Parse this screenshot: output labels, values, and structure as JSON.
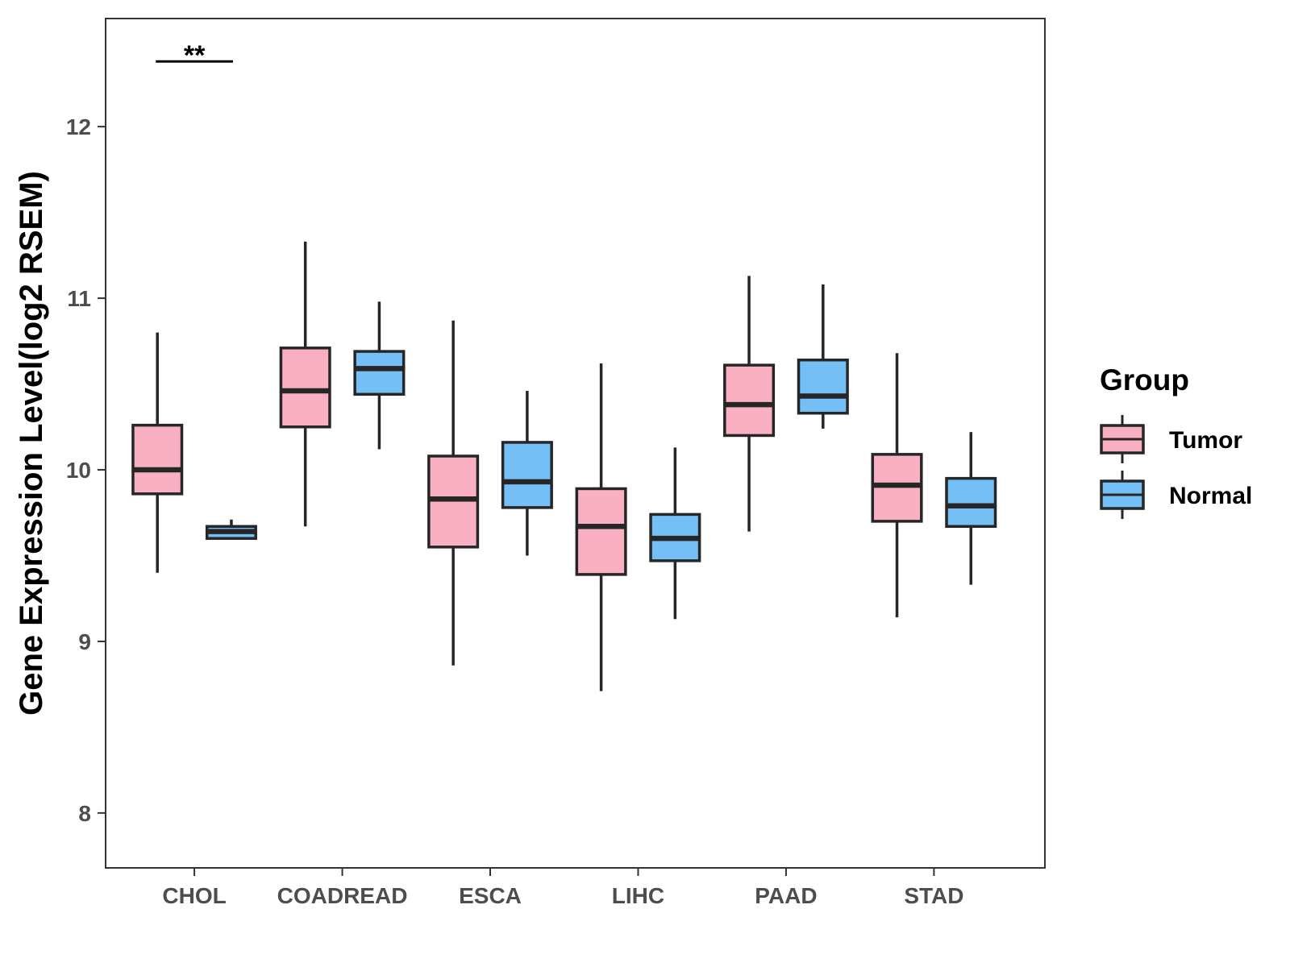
{
  "chart_data": {
    "type": "box",
    "title": "",
    "xlabel": "",
    "ylabel": "Gene Expression Level(log2 RSEM)",
    "ylim": [
      7.68,
      12.63
    ],
    "yticks": [
      8,
      9,
      10,
      11,
      12
    ],
    "categories": [
      "CHOL",
      "COADREAD",
      "ESCA",
      "LIHC",
      "PAAD",
      "STAD"
    ],
    "legend": {
      "title": "Group",
      "position": "right"
    },
    "series": [
      {
        "name": "Tumor",
        "color": "#F9B0C3",
        "boxes": [
          {
            "min": 9.4,
            "q1": 9.86,
            "median": 10.0,
            "q3": 10.26,
            "max": 10.8
          },
          {
            "min": 9.67,
            "q1": 10.25,
            "median": 10.46,
            "q3": 10.71,
            "max": 11.33
          },
          {
            "min": 8.86,
            "q1": 9.55,
            "median": 9.83,
            "q3": 10.08,
            "max": 10.87
          },
          {
            "min": 8.71,
            "q1": 9.39,
            "median": 9.67,
            "q3": 9.89,
            "max": 10.62
          },
          {
            "min": 9.64,
            "q1": 10.2,
            "median": 10.38,
            "q3": 10.61,
            "max": 11.13
          },
          {
            "min": 9.14,
            "q1": 9.7,
            "median": 9.91,
            "q3": 10.09,
            "max": 10.68
          }
        ]
      },
      {
        "name": "Normal",
        "color": "#74BFF6",
        "boxes": [
          {
            "min": 9.6,
            "q1": 9.6,
            "median": 9.64,
            "q3": 9.67,
            "max": 9.71
          },
          {
            "min": 10.12,
            "q1": 10.44,
            "median": 10.59,
            "q3": 10.69,
            "max": 10.98
          },
          {
            "min": 9.5,
            "q1": 9.78,
            "median": 9.93,
            "q3": 10.16,
            "max": 10.46
          },
          {
            "min": 9.13,
            "q1": 9.47,
            "median": 9.6,
            "q3": 9.74,
            "max": 10.13
          },
          {
            "min": 10.24,
            "q1": 10.33,
            "median": 10.43,
            "q3": 10.64,
            "max": 11.08
          },
          {
            "min": 9.33,
            "q1": 9.67,
            "median": 9.79,
            "q3": 9.95,
            "max": 10.22
          }
        ]
      }
    ],
    "annotations": [
      {
        "category": "CHOL",
        "label": "**",
        "y": 12.38
      }
    ]
  }
}
